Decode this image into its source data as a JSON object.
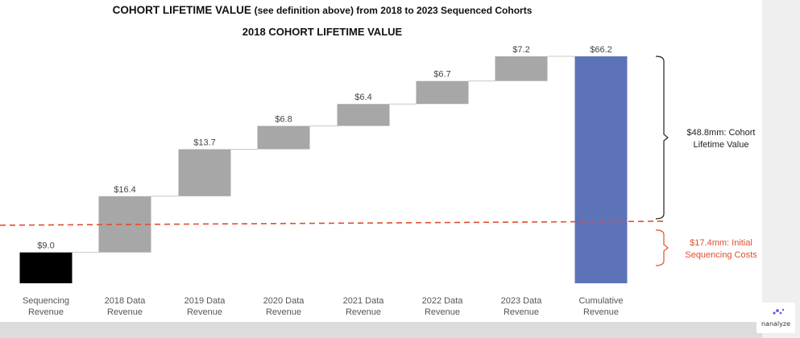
{
  "title": {
    "main": "COHORT LIFETIME VALUE",
    "main_note": "(see definition above) from 2018 to 2023 Sequenced Cohorts",
    "sub": "2018 COHORT LIFETIME VALUE"
  },
  "chart_data": {
    "type": "bar",
    "subtype": "waterfall",
    "title": "COHORT LIFETIME VALUE (see definition above) from 2018 to 2023 Sequenced Cohorts",
    "subtitle": "2018 COHORT LIFETIME VALUE",
    "categories": [
      [
        "Sequencing",
        "Revenue"
      ],
      [
        "2018 Data",
        "Revenue"
      ],
      [
        "2019 Data",
        "Revenue"
      ],
      [
        "2020 Data",
        "Revenue"
      ],
      [
        "2021 Data",
        "Revenue"
      ],
      [
        "2022 Data",
        "Revenue"
      ],
      [
        "2023 Data",
        "Revenue"
      ],
      [
        "Cumulative",
        "Revenue"
      ]
    ],
    "values": [
      9.0,
      16.4,
      13.7,
      6.8,
      6.4,
      6.7,
      7.2,
      66.2
    ],
    "value_labels": [
      "$9.0",
      "$16.4",
      "$13.7",
      "$6.8",
      "$6.4",
      "$6.7",
      "$7.2",
      "$66.2"
    ],
    "bar_kinds": [
      "start",
      "step",
      "step",
      "step",
      "step",
      "step",
      "step",
      "total"
    ],
    "ylim": [
      0,
      68
    ],
    "grid": false,
    "colors": {
      "start": "#000000",
      "step": "#a7a7a7",
      "total": "#5d73b8",
      "connector": "#c8c8c8",
      "reference_line": "#e04e2f",
      "bracket_upper": "#222222",
      "bracket_lower": "#e04e2f"
    },
    "reference_line": {
      "value": 17.4,
      "style": "dashed"
    },
    "annotations": [
      {
        "range": [
          17.4,
          66.2
        ],
        "lines": [
          "$48.8mm: Cohort",
          "Lifetime Value"
        ],
        "color": "#222222"
      },
      {
        "range": [
          0,
          17.4
        ],
        "lines": [
          "$17.4mm: Initial",
          "Sequencing Costs"
        ],
        "color": "#e04e2f"
      }
    ]
  },
  "logo": {
    "text": "nanalyze",
    "dot_color": "#6a5cd6"
  }
}
